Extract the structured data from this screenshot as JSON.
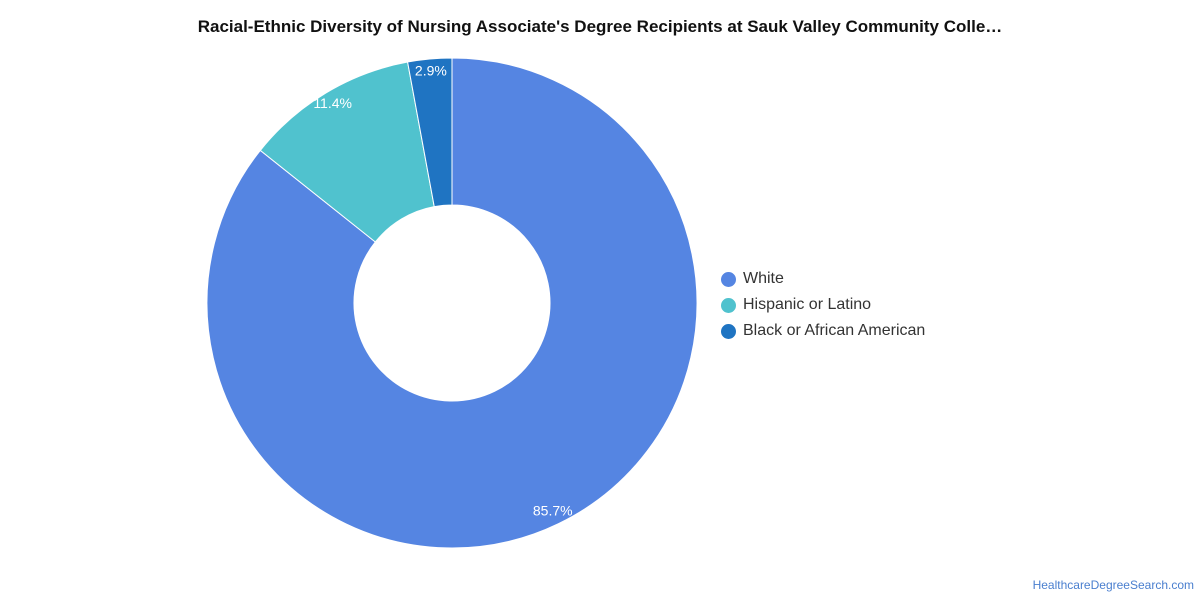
{
  "chart_data": {
    "type": "pie",
    "title": "Racial-Ethnic Diversity of Nursing Associate's Degree Recipients at Sauk Valley Community Colle…",
    "donut": true,
    "legend_position": "right",
    "series": [
      {
        "name": "White",
        "value": 85.7,
        "label": "85.7%",
        "color": "#5585e2"
      },
      {
        "name": "Hispanic or Latino",
        "value": 11.4,
        "label": "11.4%",
        "color": "#50c2ce"
      },
      {
        "name": "Black or African American",
        "value": 2.9,
        "label": "2.9%",
        "color": "#1f74c2"
      }
    ]
  },
  "footer": {
    "source": "HealthcareDegreeSearch.com"
  }
}
